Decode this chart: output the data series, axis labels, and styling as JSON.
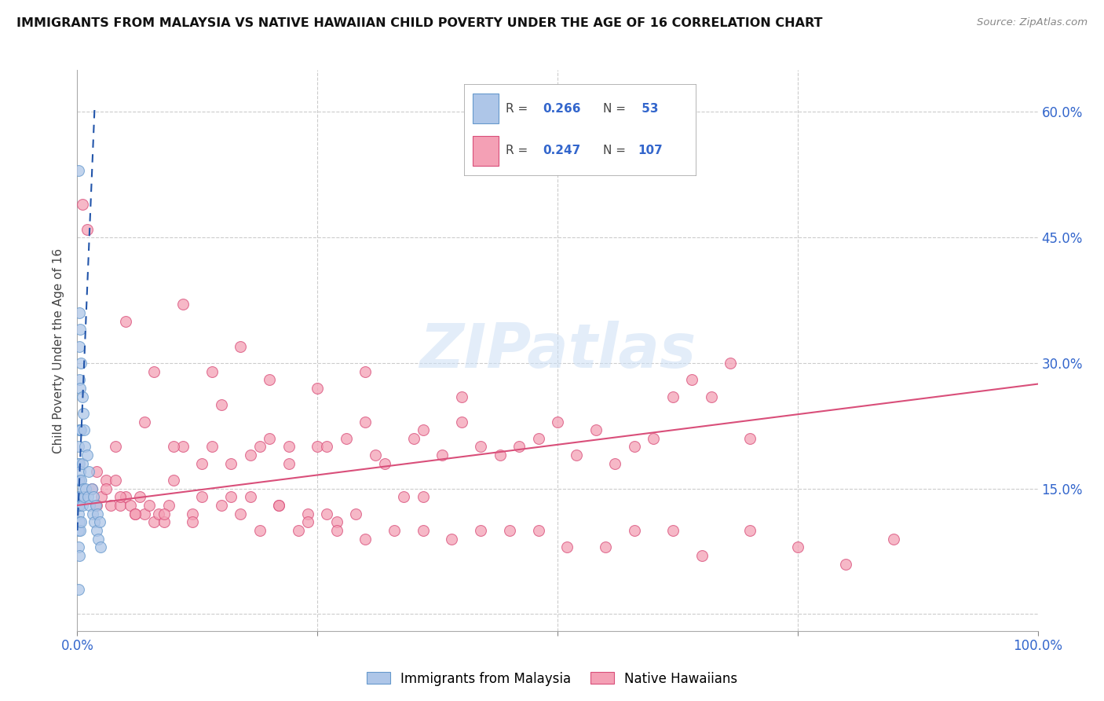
{
  "title": "IMMIGRANTS FROM MALAYSIA VS NATIVE HAWAIIAN CHILD POVERTY UNDER THE AGE OF 16 CORRELATION CHART",
  "source": "Source: ZipAtlas.com",
  "ylabel": "Child Poverty Under the Age of 16",
  "xlim": [
    0.0,
    1.0
  ],
  "ylim": [
    -0.02,
    0.65
  ],
  "yticks": [
    0.0,
    0.15,
    0.3,
    0.45,
    0.6
  ],
  "ytick_labels_right": [
    "",
    "15.0%",
    "30.0%",
    "45.0%",
    "60.0%"
  ],
  "xticks": [
    0.0,
    0.25,
    0.5,
    0.75,
    1.0
  ],
  "xtick_labels": [
    "0.0%",
    "",
    "",
    "",
    "100.0%"
  ],
  "color_blue": "#aec6e8",
  "color_pink": "#f4a0b5",
  "trend_blue": "#2255aa",
  "trend_pink": "#d94f7a",
  "watermark": "ZIPatlas",
  "series1_x": [
    0.001,
    0.001,
    0.001,
    0.001,
    0.001,
    0.001,
    0.001,
    0.001,
    0.001,
    0.001,
    0.002,
    0.002,
    0.002,
    0.002,
    0.002,
    0.002,
    0.002,
    0.002,
    0.002,
    0.003,
    0.003,
    0.003,
    0.003,
    0.003,
    0.003,
    0.004,
    0.004,
    0.004,
    0.004,
    0.005,
    0.005,
    0.005,
    0.006,
    0.006,
    0.007,
    0.007,
    0.008,
    0.009,
    0.01,
    0.011,
    0.012,
    0.013,
    0.015,
    0.016,
    0.017,
    0.018,
    0.019,
    0.02,
    0.021,
    0.022,
    0.023,
    0.024
  ],
  "series1_y": [
    0.53,
    0.2,
    0.18,
    0.16,
    0.14,
    0.13,
    0.12,
    0.1,
    0.08,
    0.03,
    0.36,
    0.32,
    0.28,
    0.22,
    0.18,
    0.16,
    0.13,
    0.11,
    0.07,
    0.34,
    0.27,
    0.22,
    0.17,
    0.14,
    0.1,
    0.3,
    0.22,
    0.16,
    0.11,
    0.26,
    0.18,
    0.13,
    0.24,
    0.15,
    0.22,
    0.14,
    0.2,
    0.15,
    0.19,
    0.14,
    0.17,
    0.13,
    0.15,
    0.12,
    0.14,
    0.11,
    0.13,
    0.1,
    0.12,
    0.09,
    0.11,
    0.08
  ],
  "series2_x": [
    0.005,
    0.01,
    0.015,
    0.02,
    0.025,
    0.03,
    0.035,
    0.04,
    0.045,
    0.05,
    0.055,
    0.06,
    0.065,
    0.07,
    0.075,
    0.08,
    0.085,
    0.09,
    0.095,
    0.1,
    0.11,
    0.12,
    0.13,
    0.14,
    0.15,
    0.16,
    0.17,
    0.18,
    0.19,
    0.2,
    0.21,
    0.22,
    0.23,
    0.24,
    0.25,
    0.26,
    0.27,
    0.28,
    0.29,
    0.3,
    0.32,
    0.34,
    0.36,
    0.38,
    0.4,
    0.42,
    0.44,
    0.46,
    0.48,
    0.5,
    0.52,
    0.54,
    0.56,
    0.58,
    0.6,
    0.62,
    0.64,
    0.66,
    0.68,
    0.7,
    0.05,
    0.08,
    0.11,
    0.14,
    0.17,
    0.2,
    0.25,
    0.3,
    0.35,
    0.4,
    0.04,
    0.07,
    0.1,
    0.13,
    0.16,
    0.19,
    0.22,
    0.26,
    0.31,
    0.36,
    0.02,
    0.03,
    0.045,
    0.06,
    0.09,
    0.12,
    0.15,
    0.18,
    0.21,
    0.24,
    0.27,
    0.3,
    0.33,
    0.36,
    0.39,
    0.42,
    0.45,
    0.48,
    0.51,
    0.55,
    0.58,
    0.62,
    0.65,
    0.7,
    0.75,
    0.8,
    0.85
  ],
  "series2_y": [
    0.49,
    0.46,
    0.15,
    0.17,
    0.14,
    0.16,
    0.13,
    0.16,
    0.13,
    0.14,
    0.13,
    0.12,
    0.14,
    0.12,
    0.13,
    0.11,
    0.12,
    0.11,
    0.13,
    0.16,
    0.2,
    0.12,
    0.14,
    0.2,
    0.25,
    0.14,
    0.12,
    0.19,
    0.1,
    0.21,
    0.13,
    0.18,
    0.1,
    0.12,
    0.2,
    0.12,
    0.11,
    0.21,
    0.12,
    0.23,
    0.18,
    0.14,
    0.22,
    0.19,
    0.23,
    0.2,
    0.19,
    0.2,
    0.21,
    0.23,
    0.19,
    0.22,
    0.18,
    0.2,
    0.21,
    0.26,
    0.28,
    0.26,
    0.3,
    0.21,
    0.35,
    0.29,
    0.37,
    0.29,
    0.32,
    0.28,
    0.27,
    0.29,
    0.21,
    0.26,
    0.2,
    0.23,
    0.2,
    0.18,
    0.18,
    0.2,
    0.2,
    0.2,
    0.19,
    0.14,
    0.13,
    0.15,
    0.14,
    0.12,
    0.12,
    0.11,
    0.13,
    0.14,
    0.13,
    0.11,
    0.1,
    0.09,
    0.1,
    0.1,
    0.09,
    0.1,
    0.1,
    0.1,
    0.08,
    0.08,
    0.1,
    0.1,
    0.07,
    0.1,
    0.08,
    0.06,
    0.09
  ],
  "trend2_x0": 0.0,
  "trend2_y0": 0.13,
  "trend2_x1": 1.0,
  "trend2_y1": 0.275,
  "trend1_slope": 28.0,
  "trend1_intercept": 0.1,
  "trend1_xmin": 0.0,
  "trend1_xmax": 0.018
}
